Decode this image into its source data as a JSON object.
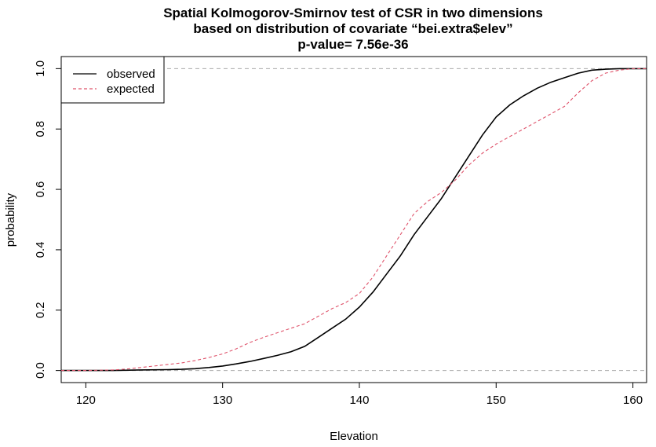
{
  "chart_data": {
    "type": "line",
    "title_lines": [
      "Spatial Kolmogorov-Smirnov test of CSR in two dimensions",
      "based on distribution of covariate “bei.extra$elev”",
      "p-value= 7.56e-36"
    ],
    "xlabel": "Elevation",
    "ylabel": "probability",
    "xlim": [
      118.2,
      161.0
    ],
    "ylim": [
      -0.04,
      1.04
    ],
    "x_ticks": [
      120,
      130,
      140,
      150,
      160
    ],
    "x_tick_labels": [
      "120",
      "130",
      "140",
      "150",
      "160"
    ],
    "y_ticks": [
      0.0,
      0.2,
      0.4,
      0.6,
      0.8,
      1.0
    ],
    "y_tick_labels": [
      "0.0",
      "0.2",
      "0.4",
      "0.6",
      "0.8",
      "1.0"
    ],
    "reference_lines": [
      0,
      1
    ],
    "legend": {
      "position": "top-left"
    },
    "series": [
      {
        "name": "observed",
        "color": "#000000",
        "dash": "solid",
        "x": [
          118.2,
          120,
          122,
          124,
          126,
          127,
          128,
          129,
          130,
          131,
          132,
          133,
          134,
          135,
          136,
          137,
          138,
          139,
          140,
          141,
          142,
          143,
          144,
          145,
          146,
          147,
          148,
          149,
          150,
          151,
          152,
          153,
          154,
          155,
          156,
          157,
          158,
          159,
          160,
          161
        ],
        "y": [
          0.0,
          0.0,
          0.0,
          0.002,
          0.003,
          0.004,
          0.006,
          0.01,
          0.015,
          0.022,
          0.03,
          0.04,
          0.05,
          0.062,
          0.08,
          0.11,
          0.14,
          0.17,
          0.21,
          0.26,
          0.32,
          0.38,
          0.45,
          0.51,
          0.57,
          0.64,
          0.71,
          0.78,
          0.84,
          0.88,
          0.91,
          0.935,
          0.955,
          0.97,
          0.985,
          0.995,
          0.998,
          1.0,
          1.0,
          1.0
        ]
      },
      {
        "name": "expected",
        "color": "#DF536B",
        "dash": "dashed",
        "x": [
          118.2,
          120,
          122,
          123,
          124,
          125,
          126,
          127,
          128,
          129,
          130,
          131,
          132,
          133,
          134,
          135,
          136,
          137,
          138,
          139,
          140,
          141,
          142,
          143,
          144,
          145,
          146,
          147,
          148,
          149,
          150,
          151,
          152,
          153,
          154,
          155,
          156,
          157,
          158,
          159,
          160,
          161
        ],
        "y": [
          0.0,
          0.0,
          0.002,
          0.005,
          0.01,
          0.015,
          0.02,
          0.025,
          0.033,
          0.043,
          0.055,
          0.072,
          0.093,
          0.11,
          0.125,
          0.14,
          0.155,
          0.18,
          0.205,
          0.225,
          0.255,
          0.31,
          0.38,
          0.45,
          0.52,
          0.56,
          0.59,
          0.63,
          0.68,
          0.72,
          0.75,
          0.775,
          0.8,
          0.825,
          0.85,
          0.875,
          0.92,
          0.96,
          0.985,
          0.995,
          1.0,
          1.0
        ]
      }
    ]
  }
}
